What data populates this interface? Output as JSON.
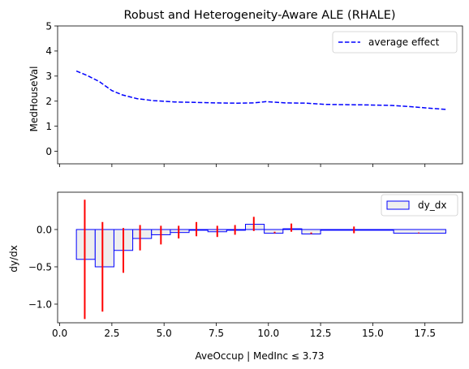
{
  "chart_data": [
    {
      "type": "line",
      "title": "Robust and Heterogeneity-Aware ALE (RHALE)",
      "xlabel": "",
      "ylabel": "MedHouseVal",
      "xlim": [
        -0.1,
        19.3
      ],
      "ylim": [
        -0.5,
        5
      ],
      "yticks": [
        0,
        1,
        2,
        3,
        4,
        5
      ],
      "xticks": [
        0,
        2.5,
        5,
        7.5,
        10,
        12.5,
        15,
        17.5
      ],
      "legend": "top-right",
      "series": [
        {
          "name": "average effect",
          "color": "#0000ff",
          "style": "dashed",
          "x": [
            0.8,
            1.3,
            1.9,
            2.5,
            3.0,
            3.7,
            4.5,
            5.5,
            6.5,
            7.5,
            8.5,
            9.3,
            9.9,
            10.8,
            11.8,
            12.7,
            13.8,
            14.8,
            15.9,
            16.8,
            17.7,
            18.5
          ],
          "y": [
            3.2,
            3.03,
            2.78,
            2.42,
            2.25,
            2.1,
            2.02,
            1.97,
            1.95,
            1.93,
            1.92,
            1.93,
            1.98,
            1.93,
            1.92,
            1.87,
            1.86,
            1.85,
            1.83,
            1.78,
            1.72,
            1.67
          ]
        }
      ]
    },
    {
      "type": "bar",
      "xlabel": "AveOccup | MedInc ≤ 3.73",
      "ylabel": "dy/dx",
      "xlim": [
        -0.1,
        19.3
      ],
      "ylim": [
        -1.25,
        0.5
      ],
      "yticks": [
        -1.0,
        -0.5,
        0.0
      ],
      "ytick_labels": [
        "−1.0",
        "−0.5",
        "0.0"
      ],
      "xticks": [
        0,
        2.5,
        5,
        7.5,
        10,
        12.5,
        15,
        17.5
      ],
      "xtick_labels": [
        "0.0",
        "2.5",
        "5.0",
        "7.5",
        "10.0",
        "12.5",
        "15.0",
        "17.5"
      ],
      "legend": "top-right",
      "series": [
        {
          "name": "dy_dx",
          "fill": "#eeeeee",
          "edge": "#0000ff",
          "bins": [
            {
              "x0": 0.8,
              "x1": 1.7,
              "value": -0.4,
              "err_low": -1.2,
              "err_high": 0.4,
              "err_x": 1.2
            },
            {
              "x0": 1.7,
              "x1": 2.6,
              "value": -0.5,
              "err_low": -1.1,
              "err_high": 0.1,
              "err_x": 2.05
            },
            {
              "x0": 2.6,
              "x1": 3.5,
              "value": -0.28,
              "err_low": -0.58,
              "err_high": 0.02,
              "err_x": 3.05
            },
            {
              "x0": 3.5,
              "x1": 4.4,
              "value": -0.12,
              "err_low": -0.28,
              "err_high": 0.06,
              "err_x": 3.85
            },
            {
              "x0": 4.4,
              "x1": 5.3,
              "value": -0.07,
              "err_low": -0.2,
              "err_high": 0.05,
              "err_x": 4.85
            },
            {
              "x0": 5.3,
              "x1": 6.2,
              "value": -0.04,
              "err_low": -0.12,
              "err_high": 0.05,
              "err_x": 5.7
            },
            {
              "x0": 6.2,
              "x1": 7.1,
              "value": -0.01,
              "err_low": -0.09,
              "err_high": 0.1,
              "err_x": 6.55
            },
            {
              "x0": 7.1,
              "x1": 8.0,
              "value": -0.03,
              "err_low": -0.1,
              "err_high": 0.05,
              "err_x": 7.55
            },
            {
              "x0": 8.0,
              "x1": 8.9,
              "value": -0.01,
              "err_low": -0.07,
              "err_high": 0.06,
              "err_x": 8.4
            },
            {
              "x0": 8.9,
              "x1": 9.8,
              "value": 0.07,
              "err_low": -0.02,
              "err_high": 0.17,
              "err_x": 9.3
            },
            {
              "x0": 9.8,
              "x1": 10.7,
              "value": -0.05,
              "err_low": -0.05,
              "err_high": -0.03,
              "err_x": 10.3
            },
            {
              "x0": 10.7,
              "x1": 11.6,
              "value": 0.01,
              "err_low": -0.03,
              "err_high": 0.08,
              "err_x": 11.1
            },
            {
              "x0": 11.6,
              "x1": 12.5,
              "value": -0.06,
              "err_low": -0.06,
              "err_high": -0.04,
              "err_x": 12.05
            },
            {
              "x0": 12.5,
              "x1": 16.0,
              "value": -0.01,
              "err_low": -0.05,
              "err_high": 0.04,
              "err_x": 14.1
            },
            {
              "x0": 16.0,
              "x1": 18.5,
              "value": -0.05,
              "err_low": -0.05,
              "err_high": -0.04,
              "err_x": 17.2
            }
          ]
        }
      ]
    }
  ]
}
